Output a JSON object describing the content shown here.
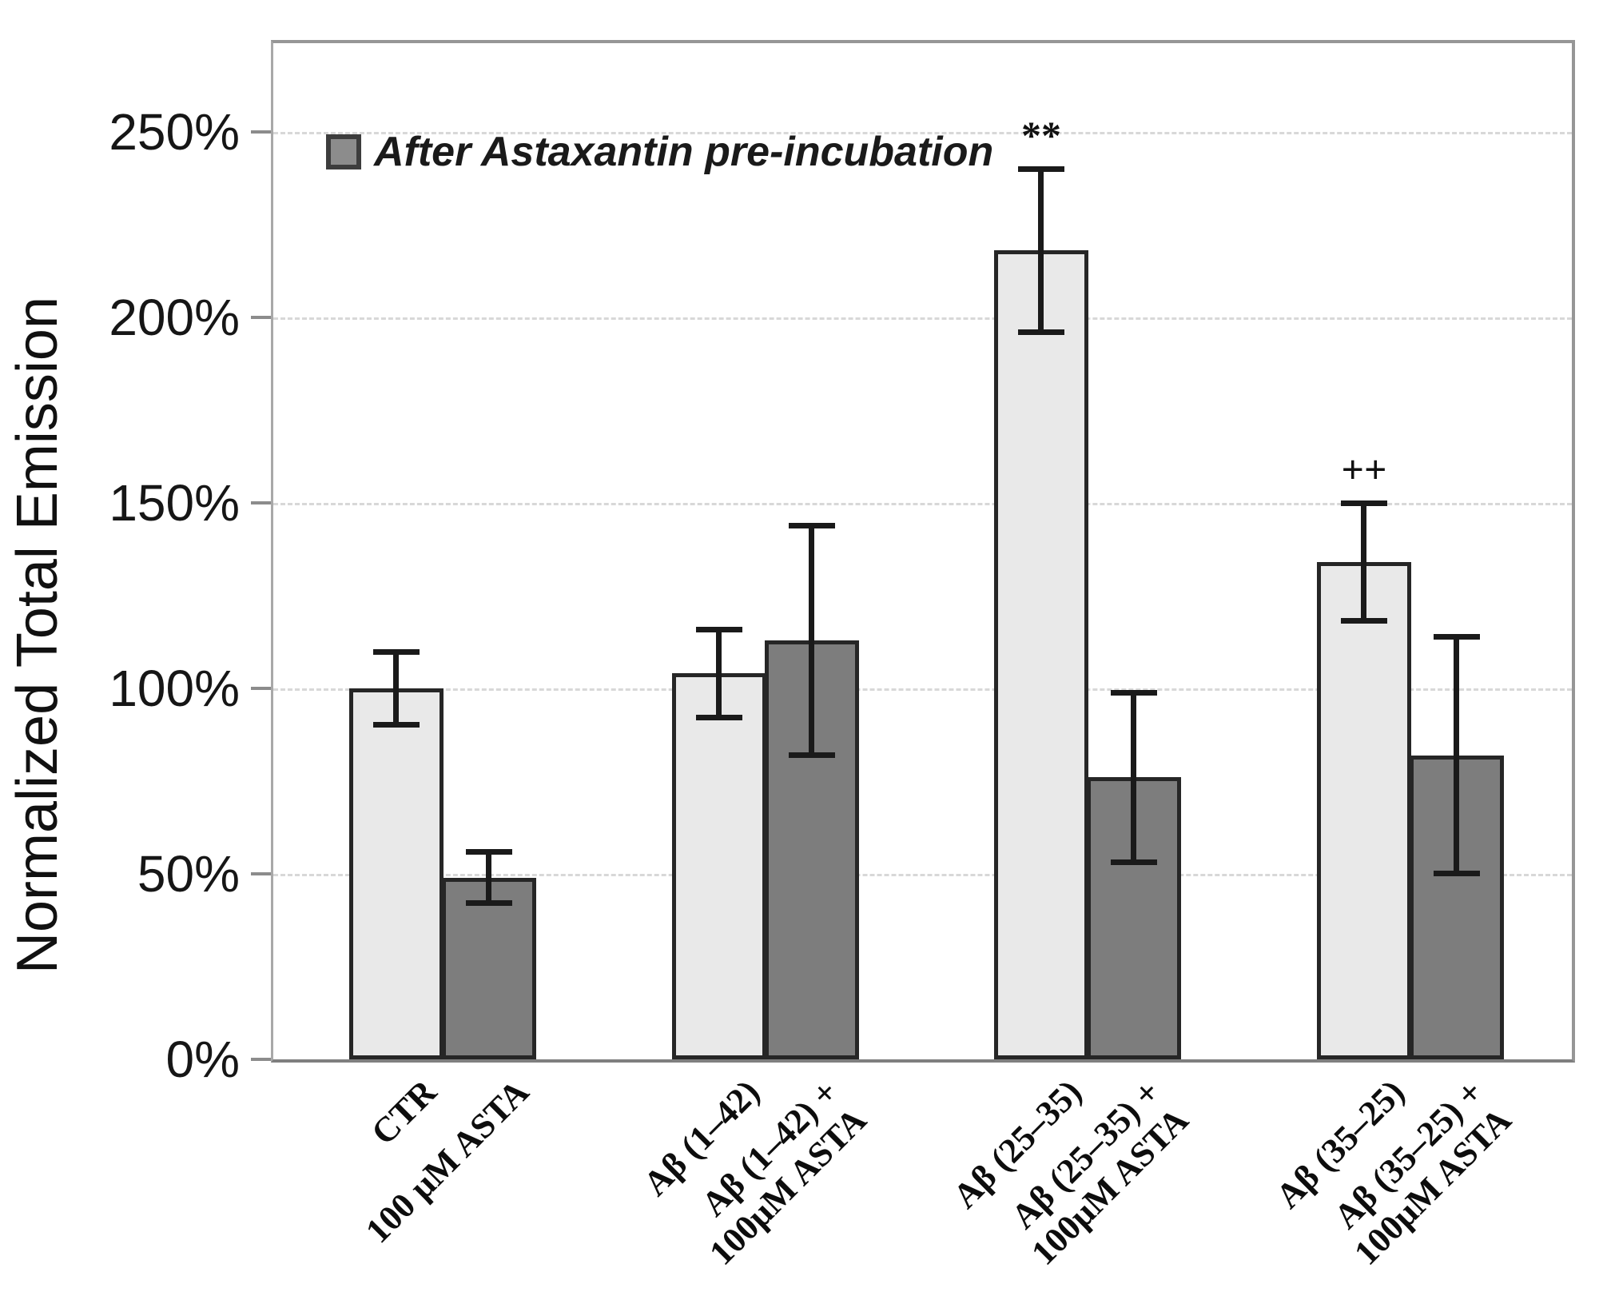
{
  "figure": {
    "y_axis_title": "Normalized Total Emission",
    "legend_label": "After Astaxantin pre-incubation"
  },
  "chart_data": {
    "type": "bar",
    "title": "",
    "xlabel": "",
    "ylabel": "Normalized Total Emission",
    "ylim": [
      0,
      275
    ],
    "yticks": [
      0,
      50,
      100,
      150,
      200,
      250
    ],
    "ytick_suffix": "%",
    "grid": "horizontal dashed at 50..250",
    "legend": {
      "label": "After Astaxantin pre-incubation",
      "applies_to_series": "asta",
      "position": "top-left-inside"
    },
    "series_colors": {
      "control": "#e9e9e9",
      "asta": "#7d7d7d"
    },
    "bars": [
      {
        "label": "CTR",
        "series": "control",
        "value": 100,
        "error": 10,
        "annotation": ""
      },
      {
        "label": "100 µM ASTA",
        "series": "asta",
        "value": 49,
        "error": 7,
        "annotation": ""
      },
      {
        "label": "Aβ (1–42)",
        "series": "control",
        "value": 104,
        "error": 12,
        "annotation": ""
      },
      {
        "label": "Aβ (1–42) +\n100µM ASTA",
        "series": "asta",
        "value": 113,
        "error": 31,
        "annotation": ""
      },
      {
        "label": "Aβ (25–35)",
        "series": "control",
        "value": 218,
        "error": 22,
        "annotation": "**"
      },
      {
        "label": "Aβ (25–35) +\n100µM ASTA",
        "series": "asta",
        "value": 76,
        "error": 23,
        "annotation": ""
      },
      {
        "label": "Aβ (35–25)",
        "series": "control",
        "value": 134,
        "error": 16,
        "annotation": "++"
      },
      {
        "label": "Aβ (35–25) +\n100µM ASTA",
        "series": "asta",
        "value": 82,
        "error": 32,
        "annotation": ""
      }
    ]
  }
}
